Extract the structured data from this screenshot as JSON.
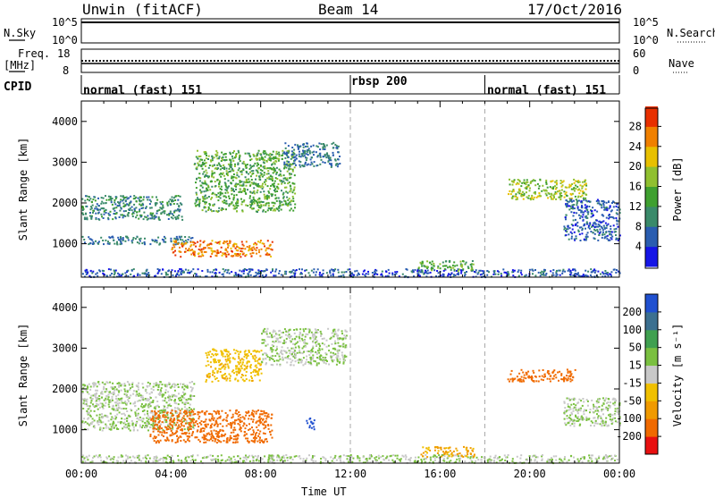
{
  "header": {
    "station": "Unwin (fitACF)",
    "beam": "Beam 14",
    "date": "17/Oct/2016"
  },
  "top_panels": {
    "nsky_label": "N.Sky",
    "nsky_ticks": [
      "10^5",
      "10^0"
    ],
    "nsearch_label": "N.Search",
    "nsearch_ticks": [
      "10^5",
      "10^0"
    ],
    "freq_label": "Freq.",
    "freq_unit": "[MHz]",
    "freq_ticks": [
      "18",
      "8"
    ],
    "nave_label": "Nave",
    "nave_ticks": [
      "60",
      "0"
    ],
    "cpid_label": "CPID"
  },
  "cpid_segments": [
    {
      "label": "normal (fast) 151",
      "start_hour": 0
    },
    {
      "label": "rbsp 200",
      "start_hour": 12
    },
    {
      "label": "normal (fast) 151",
      "start_hour": 18
    }
  ],
  "colors": {
    "power": [
      "#1515e6",
      "#2a5db0",
      "#3a8a6a",
      "#3fa030",
      "#90c030",
      "#e8c000",
      "#f08000",
      "#e83000"
    ],
    "velocity": [
      "#e81010",
      "#f06a00",
      "#f09a00",
      "#f0c000",
      "#c8c8c8",
      "#7ac040",
      "#40a050",
      "#3c7090",
      "#2050d0"
    ]
  },
  "chart_data": [
    {
      "type": "heatmap",
      "name": "Power",
      "ylabel": "Slant Range [km]",
      "y_ticks": [
        1000,
        2000,
        3000,
        4000
      ],
      "xlim": [
        0,
        24
      ],
      "ylim": [
        180,
        4500
      ],
      "colorbar_label": "Power [dB]",
      "colorbar_ticks": [
        4,
        8,
        12,
        16,
        20,
        24,
        28
      ],
      "colorbar_range": [
        0,
        32
      ],
      "features": [
        {
          "t": [
            0.0,
            4.5
          ],
          "range_km": [
            1600,
            2200
          ],
          "level": 10
        },
        {
          "t": [
            0.0,
            5.0
          ],
          "range_km": [
            1000,
            1200
          ],
          "level": 8
        },
        {
          "t": [
            4.0,
            8.5
          ],
          "range_km": [
            700,
            1100
          ],
          "level": 26
        },
        {
          "t": [
            5.0,
            9.5
          ],
          "range_km": [
            1800,
            3300
          ],
          "level": 14
        },
        {
          "t": [
            9.0,
            11.5
          ],
          "range_km": [
            2900,
            3500
          ],
          "level": 8
        },
        {
          "t": [
            0.0,
            24.0
          ],
          "range_km": [
            200,
            400
          ],
          "level": 6
        },
        {
          "t": [
            15.0,
            17.5
          ],
          "range_km": [
            350,
            600
          ],
          "level": 14
        },
        {
          "t": [
            19.0,
            22.5
          ],
          "range_km": [
            2100,
            2600
          ],
          "level": 18
        },
        {
          "t": [
            21.5,
            24.0
          ],
          "range_km": [
            1100,
            2100
          ],
          "level": 6
        }
      ]
    },
    {
      "type": "heatmap",
      "name": "Velocity",
      "ylabel": "Slant Range [km]",
      "y_ticks": [
        1000,
        2000,
        3000,
        4000
      ],
      "xlim": [
        0,
        24
      ],
      "ylim": [
        180,
        4500
      ],
      "colorbar_label": "Velocity [m s^-1]",
      "colorbar_ticks": [
        200,
        100,
        50,
        15,
        -15,
        -50,
        -100,
        -200
      ],
      "features": [
        {
          "t": [
            0.0,
            5.0
          ],
          "range_km": [
            1000,
            2200
          ],
          "velocity": 0
        },
        {
          "t": [
            3.0,
            8.5
          ],
          "range_km": [
            700,
            1500
          ],
          "velocity": -200
        },
        {
          "t": [
            5.5,
            8.0
          ],
          "range_km": [
            2200,
            3000
          ],
          "velocity": -60
        },
        {
          "t": [
            8.0,
            11.8
          ],
          "range_km": [
            2600,
            3500
          ],
          "velocity": 0
        },
        {
          "t": [
            10.0,
            10.4
          ],
          "range_km": [
            1000,
            1300
          ],
          "velocity": 220
        },
        {
          "t": [
            0.0,
            24.0
          ],
          "range_km": [
            200,
            400
          ],
          "velocity": 0
        },
        {
          "t": [
            15.0,
            17.5
          ],
          "range_km": [
            350,
            600
          ],
          "velocity": -80
        },
        {
          "t": [
            19.0,
            22.0
          ],
          "range_km": [
            2200,
            2500
          ],
          "velocity": -200
        },
        {
          "t": [
            21.5,
            24.0
          ],
          "range_km": [
            1100,
            1800
          ],
          "velocity": 0
        }
      ]
    }
  ],
  "x_axis": {
    "label": "Time UT",
    "ticks": [
      "00:00",
      "04:00",
      "08:00",
      "12:00",
      "16:00",
      "20:00",
      "00:00"
    ]
  }
}
